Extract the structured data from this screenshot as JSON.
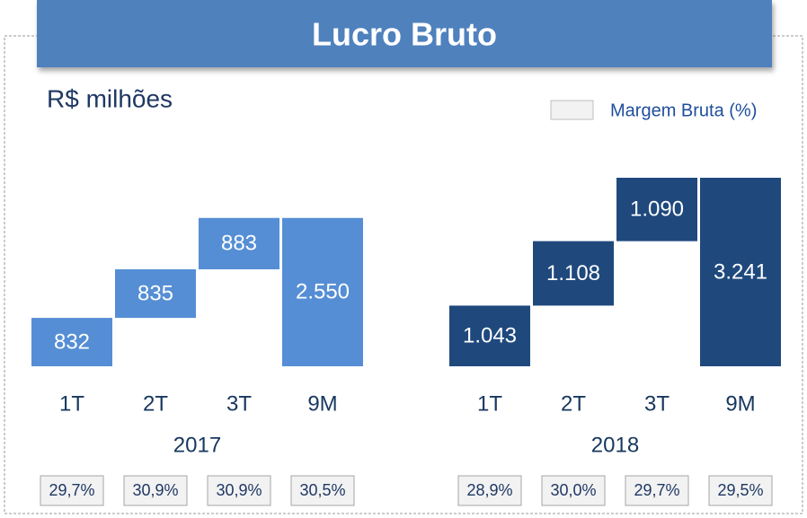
{
  "chart_data": {
    "type": "waterfall",
    "title": "Lucro Bruto",
    "subtitle": "R$ milhões",
    "legend": "Margem Bruta (%)",
    "groups": [
      {
        "name": "2017",
        "color": "#558ed5",
        "categories": [
          "1T",
          "2T",
          "3T",
          "9M"
        ],
        "values": [
          832,
          835,
          883,
          2550
        ],
        "value_labels": [
          "832",
          "835",
          "883",
          "2.550"
        ],
        "margins": [
          29.7,
          30.9,
          30.9,
          30.5
        ],
        "margin_labels": [
          "29,7%",
          "30,9%",
          "30,9%",
          "30,5%"
        ]
      },
      {
        "name": "2018",
        "color": "#1f497d",
        "categories": [
          "1T",
          "2T",
          "3T",
          "9M"
        ],
        "values": [
          1043,
          1108,
          1090,
          3241
        ],
        "value_labels": [
          "1.043",
          "1.108",
          "1.090",
          "3.241"
        ],
        "margins": [
          28.9,
          30.0,
          29.7,
          29.5
        ],
        "margin_labels": [
          "28,9%",
          "30,0%",
          "29,7%",
          "29,5%"
        ]
      }
    ]
  }
}
